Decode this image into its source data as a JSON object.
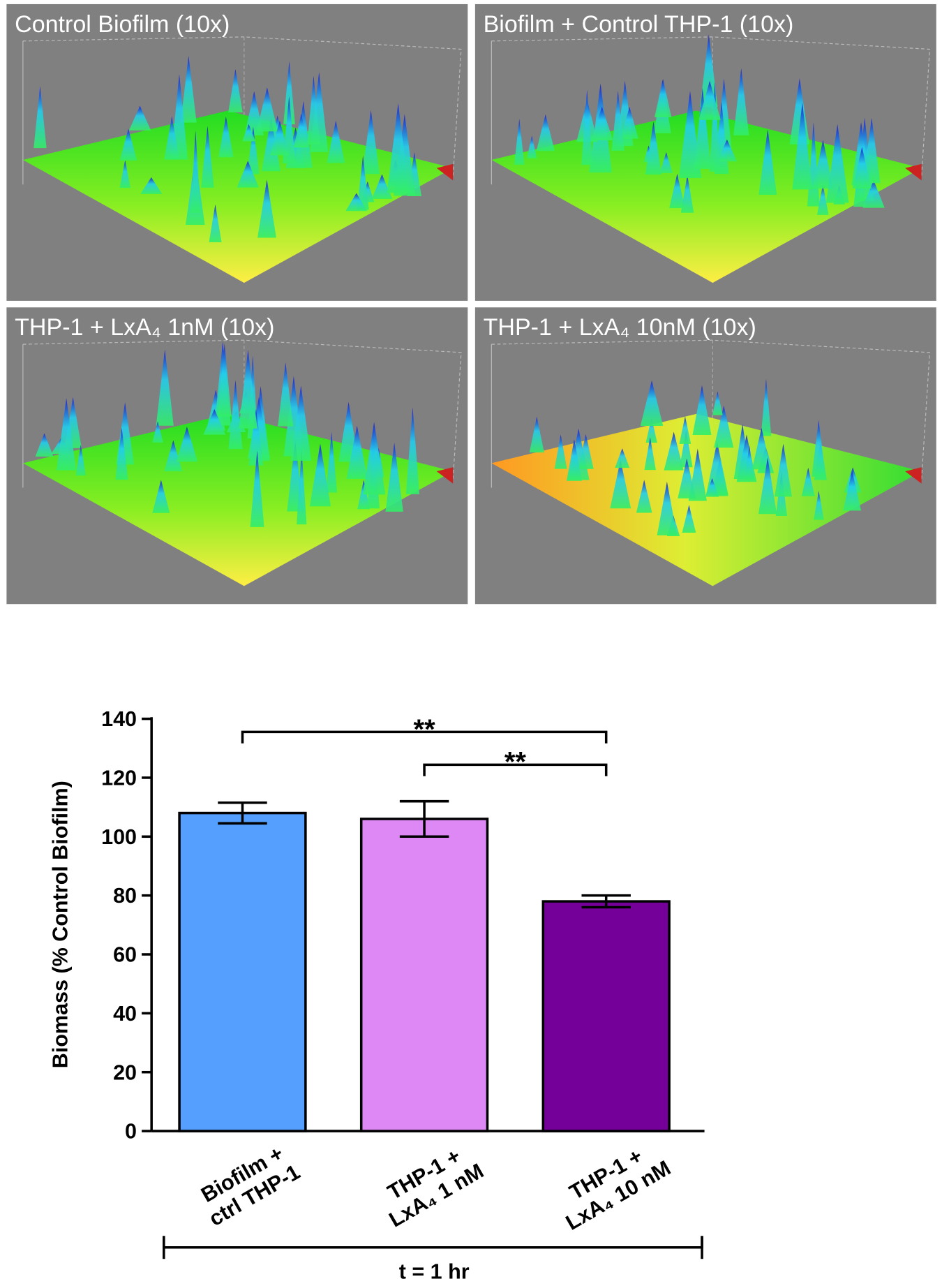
{
  "panels": [
    {
      "title": "Control Biofilm (10x)"
    },
    {
      "title": "Biofilm + Control THP-1 (10x)"
    },
    {
      "title": "THP-1 + LxA₄ 1nM (10x)"
    },
    {
      "title": "THP-1 + LxA₄ 10nM (10x)"
    }
  ],
  "chart_data": {
    "type": "bar",
    "ylabel": "Biomass (% Control Biofilm)",
    "group_label": "t = 1 hr",
    "categories": [
      [
        "Biofilm +",
        "ctrl THP-1"
      ],
      [
        "THP-1 +",
        "LxA₄ 1 nM"
      ],
      [
        "THP-1 +",
        "LxA₄ 10 nM"
      ]
    ],
    "values": [
      108,
      106,
      78
    ],
    "errors": [
      3.5,
      6,
      2
    ],
    "colors": [
      "#559ffe",
      "#dd88f5",
      "#740099"
    ],
    "ylim": [
      0,
      140
    ],
    "yticks": [
      0,
      20,
      40,
      60,
      80,
      100,
      120,
      140
    ],
    "significance": [
      {
        "label": "**",
        "between": [
          0,
          2
        ]
      },
      {
        "label": "**",
        "between": [
          1,
          2
        ]
      }
    ]
  }
}
